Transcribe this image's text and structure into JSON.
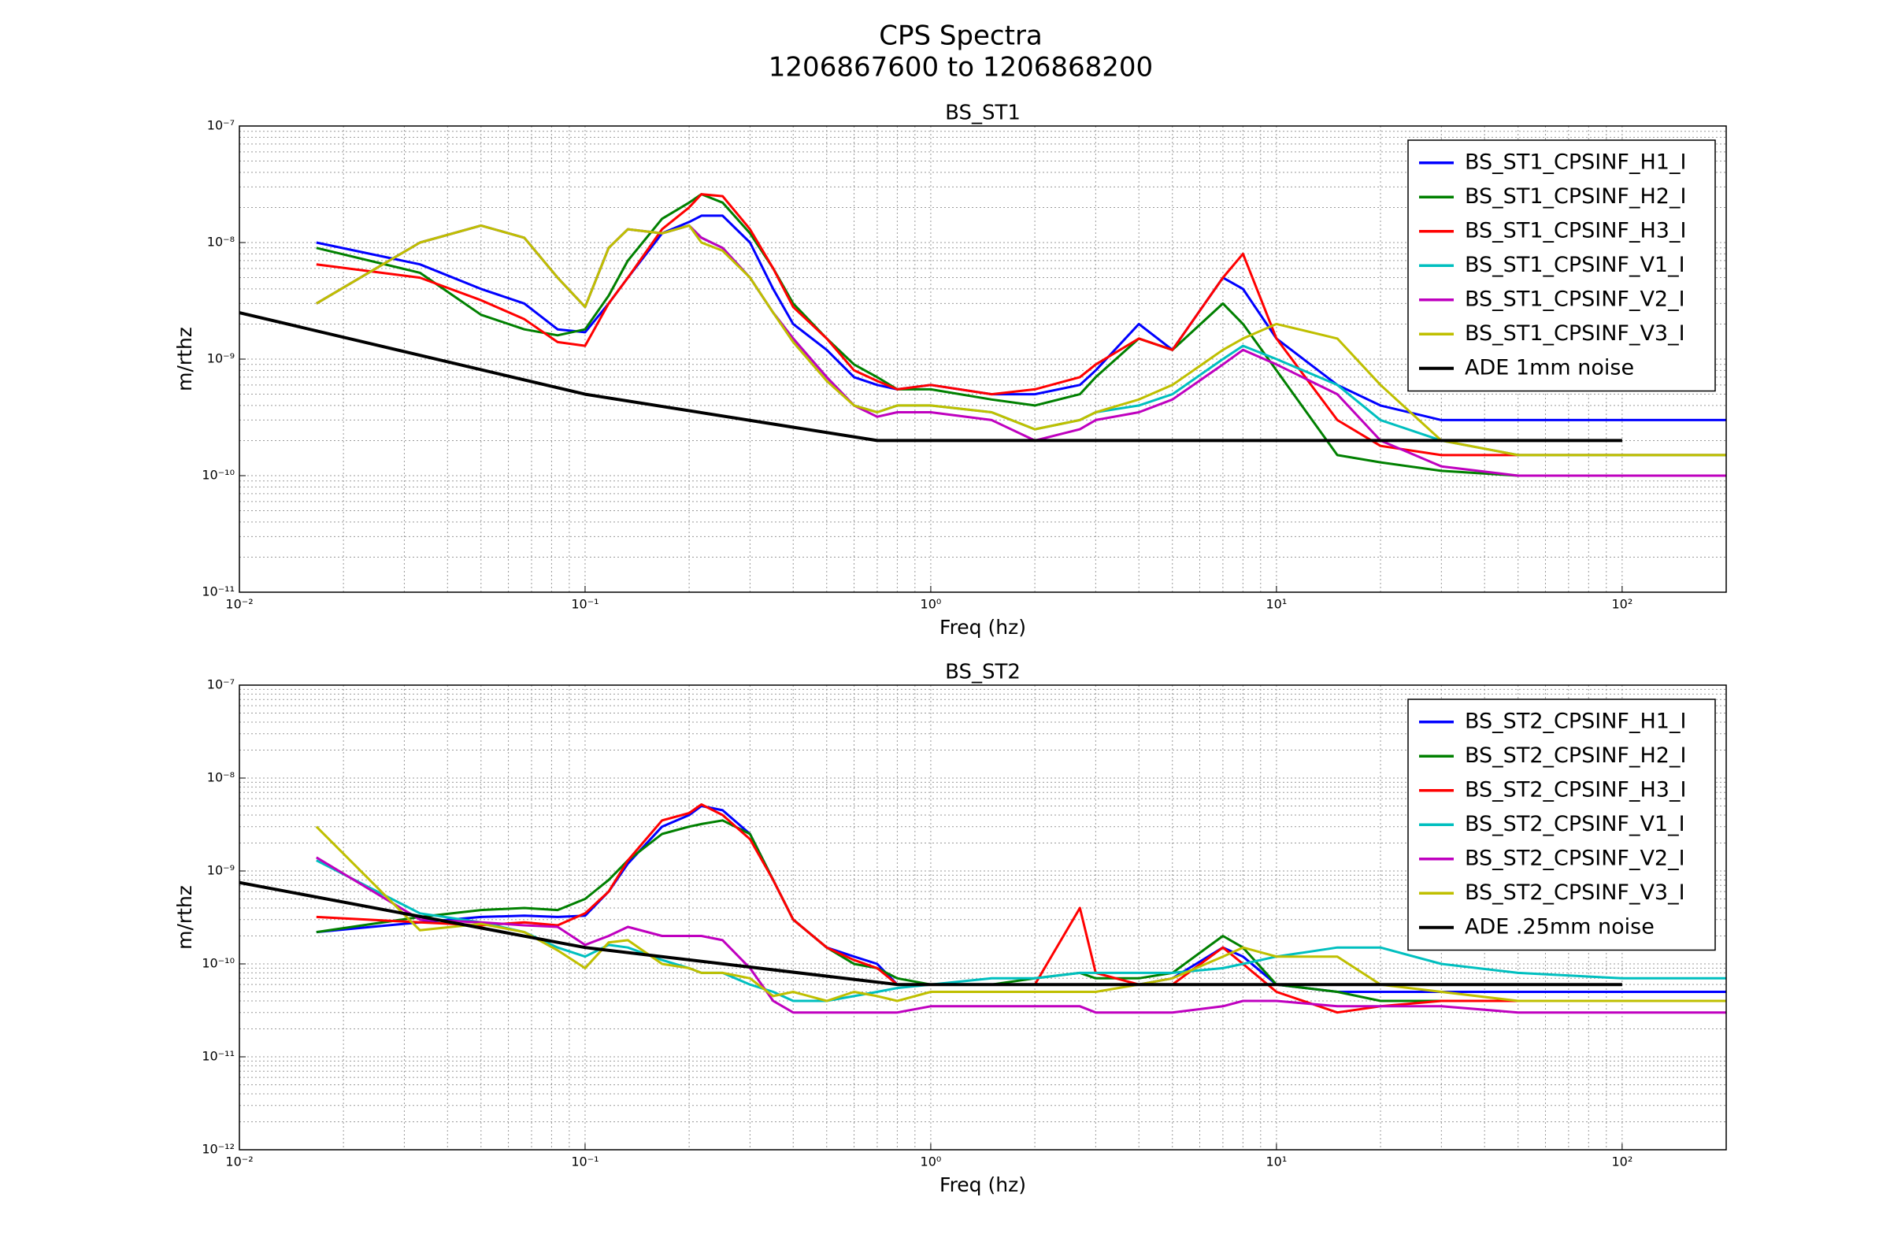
{
  "title": "CPS Spectra",
  "subtitle": "1206867600 to 1206868200",
  "chart_data": [
    {
      "type": "line",
      "title": "BS_ST1",
      "x_label": "Freq (hz)",
      "y_label": "m/rthz",
      "xscale": "log",
      "yscale": "log",
      "grid": true,
      "legend": "upper right",
      "xlim": [
        0.01,
        200
      ],
      "ylim": [
        1e-11,
        1e-07
      ],
      "xticks": [
        {
          "value": 0.01,
          "label": "10⁻²"
        },
        {
          "value": 0.1,
          "label": "10⁻¹"
        },
        {
          "value": 1,
          "label": "10⁰"
        },
        {
          "value": 10,
          "label": "10¹"
        },
        {
          "value": 100,
          "label": "10²"
        }
      ],
      "yticks": [
        {
          "value": 1e-11,
          "label": "10⁻¹¹"
        },
        {
          "value": 1e-10,
          "label": "10⁻¹⁰"
        },
        {
          "value": 1e-09,
          "label": "10⁻⁹"
        },
        {
          "value": 1e-08,
          "label": "10⁻⁸"
        },
        {
          "value": 1e-07,
          "label": "10⁻⁷"
        }
      ],
      "x": [
        0.0167,
        0.0333,
        0.05,
        0.0667,
        0.0833,
        0.1,
        0.117,
        0.133,
        0.167,
        0.2,
        0.217,
        0.25,
        0.3,
        0.35,
        0.4,
        0.5,
        0.6,
        0.7,
        0.8,
        1,
        1.5,
        2,
        2.7,
        3,
        4,
        5,
        7,
        8,
        10,
        15,
        20,
        30,
        50,
        100,
        200
      ],
      "series": [
        {
          "name": "BS_ST1_CPSINF_H1_I",
          "color": "#0000ff",
          "values": [
            1e-08,
            6.5e-09,
            4e-09,
            3e-09,
            1.8e-09,
            1.7e-09,
            3e-09,
            5e-09,
            1.2e-08,
            1.5e-08,
            1.7e-08,
            1.7e-08,
            1e-08,
            4e-09,
            2e-09,
            1.2e-09,
            7e-10,
            6e-10,
            5.5e-10,
            6e-10,
            5e-10,
            5e-10,
            6e-10,
            8e-10,
            2e-09,
            1.2e-09,
            5e-09,
            4e-09,
            1.5e-09,
            6e-10,
            4e-10,
            3e-10,
            3e-10,
            3e-10,
            3e-10
          ]
        },
        {
          "name": "BS_ST1_CPSINF_H2_I",
          "color": "#008000",
          "values": [
            9e-09,
            5.5e-09,
            2.4e-09,
            1.8e-09,
            1.6e-09,
            1.8e-09,
            3.5e-09,
            7e-09,
            1.6e-08,
            2.2e-08,
            2.6e-08,
            2.2e-08,
            1.2e-08,
            6e-09,
            3e-09,
            1.5e-09,
            9e-10,
            7e-10,
            5.5e-10,
            5.5e-10,
            4.5e-10,
            4e-10,
            5e-10,
            7e-10,
            1.5e-09,
            1.2e-09,
            3e-09,
            2e-09,
            8e-10,
            1.5e-10,
            1.3e-10,
            1.1e-10,
            1e-10,
            1e-10,
            1e-10
          ]
        },
        {
          "name": "BS_ST1_CPSINF_H3_I",
          "color": "#ff0000",
          "values": [
            6.5e-09,
            5e-09,
            3.2e-09,
            2.2e-09,
            1.4e-09,
            1.3e-09,
            3e-09,
            5e-09,
            1.3e-08,
            2e-08,
            2.6e-08,
            2.5e-08,
            1.3e-08,
            6e-09,
            2.8e-09,
            1.5e-09,
            8e-10,
            6.5e-10,
            5.5e-10,
            6e-10,
            5e-10,
            5.5e-10,
            7e-10,
            9e-10,
            1.5e-09,
            1.2e-09,
            5e-09,
            8e-09,
            1.5e-09,
            3e-10,
            1.8e-10,
            1.5e-10,
            1.5e-10,
            1.5e-10,
            1.5e-10
          ]
        },
        {
          "name": "BS_ST1_CPSINF_V1_I",
          "color": "#00bfbf",
          "values": [
            3e-09,
            1e-08,
            1.4e-08,
            1.1e-08,
            5e-09,
            2.8e-09,
            9e-09,
            1.3e-08,
            1.2e-08,
            1.4e-08,
            1.1e-08,
            9e-09,
            5e-09,
            2.5e-09,
            1.5e-09,
            7e-10,
            4e-10,
            3.5e-10,
            4e-10,
            4e-10,
            3.5e-10,
            2.5e-10,
            3e-10,
            3.5e-10,
            4e-10,
            5e-10,
            1e-09,
            1.3e-09,
            1e-09,
            6e-10,
            3e-10,
            2e-10,
            1.5e-10,
            1.5e-10,
            1.5e-10
          ]
        },
        {
          "name": "BS_ST1_CPSINF_V2_I",
          "color": "#bf00bf",
          "values": [
            3e-09,
            1e-08,
            1.4e-08,
            1.1e-08,
            5e-09,
            2.8e-09,
            9e-09,
            1.3e-08,
            1.2e-08,
            1.4e-08,
            1.1e-08,
            9e-09,
            5e-09,
            2.5e-09,
            1.5e-09,
            7e-10,
            4e-10,
            3.2e-10,
            3.5e-10,
            3.5e-10,
            3e-10,
            2e-10,
            2.5e-10,
            3e-10,
            3.5e-10,
            4.5e-10,
            9e-10,
            1.2e-09,
            9e-10,
            5e-10,
            2e-10,
            1.2e-10,
            1e-10,
            1e-10,
            1e-10
          ]
        },
        {
          "name": "BS_ST1_CPSINF_V3_I",
          "color": "#bfbf00",
          "values": [
            3e-09,
            1e-08,
            1.4e-08,
            1.1e-08,
            5e-09,
            2.8e-09,
            9e-09,
            1.3e-08,
            1.2e-08,
            1.4e-08,
            1e-08,
            8.5e-09,
            5e-09,
            2.5e-09,
            1.4e-09,
            6.5e-10,
            4e-10,
            3.5e-10,
            4e-10,
            4e-10,
            3.5e-10,
            2.5e-10,
            3e-10,
            3.5e-10,
            4.5e-10,
            6e-10,
            1.2e-09,
            1.5e-09,
            2e-09,
            1.5e-09,
            6e-10,
            2e-10,
            1.5e-10,
            1.5e-10,
            1.5e-10
          ]
        },
        {
          "name": "ADE 1mm noise",
          "color": "#000000",
          "x": [
            0.01,
            0.1,
            0.7,
            100
          ],
          "values": [
            2.5e-09,
            5e-10,
            2e-10,
            2e-10
          ]
        }
      ]
    },
    {
      "type": "line",
      "title": "BS_ST2",
      "x_label": "Freq (hz)",
      "y_label": "m/rthz",
      "xscale": "log",
      "yscale": "log",
      "grid": true,
      "legend": "upper right",
      "xlim": [
        0.01,
        200
      ],
      "ylim": [
        1e-12,
        1e-07
      ],
      "xticks": [
        {
          "value": 0.01,
          "label": "10⁻²"
        },
        {
          "value": 0.1,
          "label": "10⁻¹"
        },
        {
          "value": 1,
          "label": "10⁰"
        },
        {
          "value": 10,
          "label": "10¹"
        },
        {
          "value": 100,
          "label": "10²"
        }
      ],
      "yticks": [
        {
          "value": 1e-12,
          "label": "10⁻¹²"
        },
        {
          "value": 1e-11,
          "label": "10⁻¹¹"
        },
        {
          "value": 1e-10,
          "label": "10⁻¹⁰"
        },
        {
          "value": 1e-09,
          "label": "10⁻⁹"
        },
        {
          "value": 1e-08,
          "label": "10⁻⁸"
        },
        {
          "value": 1e-07,
          "label": "10⁻⁷"
        }
      ],
      "x": [
        0.0167,
        0.0333,
        0.05,
        0.0667,
        0.0833,
        0.1,
        0.117,
        0.133,
        0.167,
        0.2,
        0.217,
        0.25,
        0.3,
        0.35,
        0.4,
        0.5,
        0.6,
        0.7,
        0.8,
        1,
        1.5,
        2,
        2.7,
        3,
        4,
        5,
        7,
        8,
        10,
        15,
        20,
        30,
        50,
        100,
        200
      ],
      "series": [
        {
          "name": "BS_ST2_CPSINF_H1_I",
          "color": "#0000ff",
          "values": [
            2.2e-10,
            2.8e-10,
            3.2e-10,
            3.3e-10,
            3.2e-10,
            3.3e-10,
            6e-10,
            1.2e-09,
            3e-09,
            4e-09,
            5e-09,
            4.5e-09,
            2.5e-09,
            8e-10,
            3e-10,
            1.5e-10,
            1.2e-10,
            1e-10,
            6e-11,
            6e-11,
            6e-11,
            6e-11,
            6e-11,
            6e-11,
            6e-11,
            7e-11,
            1.5e-10,
            1.2e-10,
            6e-11,
            5e-11,
            5e-11,
            5e-11,
            5e-11,
            5e-11,
            5e-11
          ]
        },
        {
          "name": "BS_ST2_CPSINF_H2_I",
          "color": "#008000",
          "values": [
            2.2e-10,
            3.2e-10,
            3.8e-10,
            4e-10,
            3.8e-10,
            5e-10,
            8e-10,
            1.3e-09,
            2.5e-09,
            3e-09,
            3.2e-09,
            3.5e-09,
            2.5e-09,
            8e-10,
            3e-10,
            1.5e-10,
            1e-10,
            9e-11,
            7e-11,
            6e-11,
            6e-11,
            7e-11,
            8e-11,
            7e-11,
            7e-11,
            8e-11,
            2e-10,
            1.5e-10,
            6e-11,
            5e-11,
            4e-11,
            4e-11,
            4e-11,
            4e-11,
            4e-11
          ]
        },
        {
          "name": "BS_ST2_CPSINF_H3_I",
          "color": "#ff0000",
          "values": [
            3.2e-10,
            2.8e-10,
            2.6e-10,
            2.8e-10,
            2.6e-10,
            3.5e-10,
            6e-10,
            1.3e-09,
            3.5e-09,
            4.2e-09,
            5.2e-09,
            4e-09,
            2.2e-09,
            8e-10,
            3e-10,
            1.5e-10,
            1.1e-10,
            9e-11,
            6e-11,
            6e-11,
            6e-11,
            6e-11,
            4e-10,
            8e-11,
            6e-11,
            6e-11,
            1.5e-10,
            1e-10,
            5e-11,
            3e-11,
            3.5e-11,
            4e-11,
            4e-11,
            4e-11,
            4e-11
          ]
        },
        {
          "name": "BS_ST2_CPSINF_V1_I",
          "color": "#00bfbf",
          "values": [
            1.3e-09,
            3.5e-10,
            2.8e-10,
            2.2e-10,
            1.5e-10,
            1.2e-10,
            1.6e-10,
            1.5e-10,
            1.1e-10,
            9e-11,
            8e-11,
            8e-11,
            6e-11,
            5e-11,
            4e-11,
            4e-11,
            4.5e-11,
            5e-11,
            5.5e-11,
            6e-11,
            7e-11,
            7e-11,
            8e-11,
            8e-11,
            8e-11,
            8e-11,
            9e-11,
            1e-10,
            1.2e-10,
            1.5e-10,
            1.5e-10,
            1e-10,
            8e-11,
            7e-11,
            7e-11
          ]
        },
        {
          "name": "BS_ST2_CPSINF_V2_I",
          "color": "#bf00bf",
          "values": [
            1.4e-09,
            3e-10,
            2.8e-10,
            2.6e-10,
            2.5e-10,
            1.6e-10,
            2e-10,
            2.5e-10,
            2e-10,
            2e-10,
            2e-10,
            1.8e-10,
            9e-11,
            4e-11,
            3e-11,
            3e-11,
            3e-11,
            3e-11,
            3e-11,
            3.5e-11,
            3.5e-11,
            3.5e-11,
            3.5e-11,
            3e-11,
            3e-11,
            3e-11,
            3.5e-11,
            4e-11,
            4e-11,
            3.5e-11,
            3.5e-11,
            3.5e-11,
            3e-11,
            3e-11,
            3e-11
          ]
        },
        {
          "name": "BS_ST2_CPSINF_V3_I",
          "color": "#bfbf00",
          "values": [
            3e-09,
            2.3e-10,
            2.7e-10,
            2.2e-10,
            1.4e-10,
            9e-11,
            1.7e-10,
            1.8e-10,
            1e-10,
            9e-11,
            8e-11,
            8e-11,
            7e-11,
            4.5e-11,
            5e-11,
            4e-11,
            5e-11,
            4.5e-11,
            4e-11,
            5e-11,
            5e-11,
            5e-11,
            5e-11,
            5e-11,
            6e-11,
            7e-11,
            1.2e-10,
            1.5e-10,
            1.2e-10,
            1.2e-10,
            6e-11,
            5e-11,
            4e-11,
            4e-11,
            4e-11
          ]
        },
        {
          "name": "ADE .25mm noise",
          "color": "#000000",
          "x": [
            0.01,
            0.1,
            0.8,
            100
          ],
          "values": [
            7.5e-10,
            1.5e-10,
            6e-11,
            6e-11
          ]
        }
      ]
    }
  ]
}
